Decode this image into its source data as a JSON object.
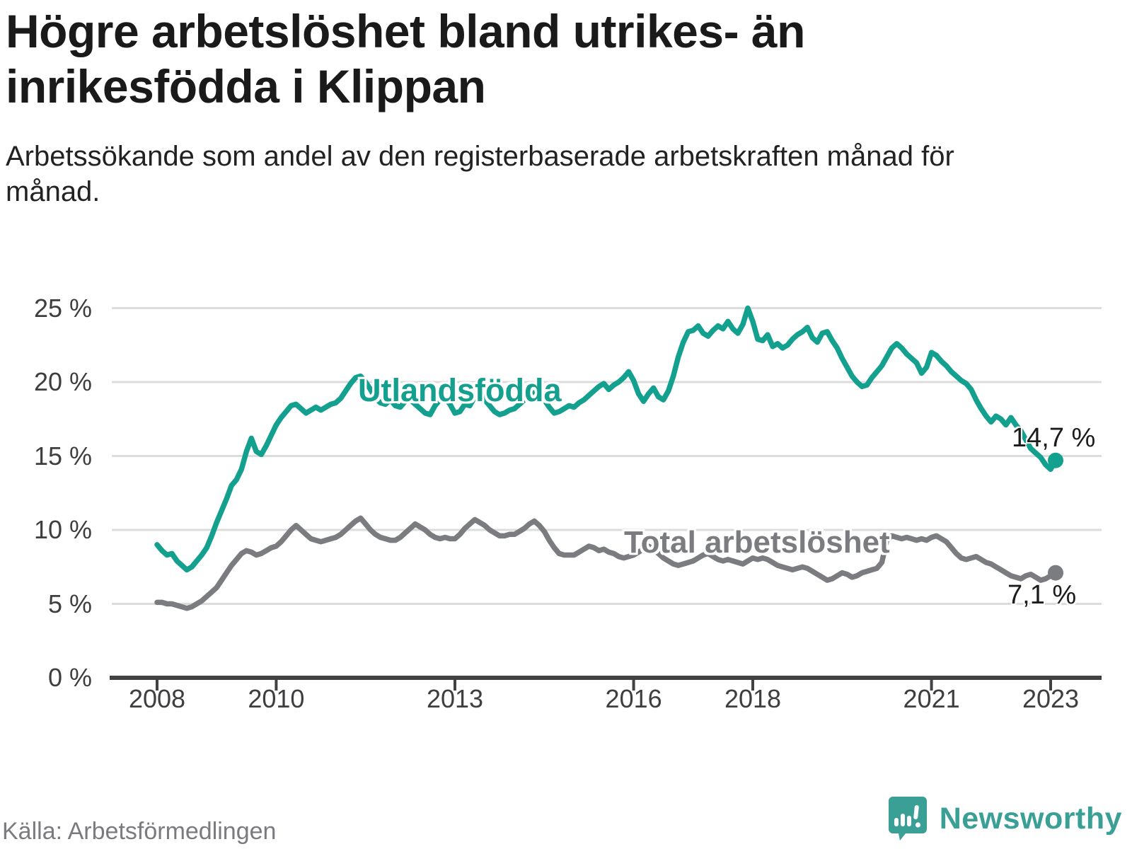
{
  "header": {
    "title": "Högre arbetslöshet bland utrikes- än inrikesfödda i Klippan",
    "subtitle": "Arbetssökande som andel av den registerbaserade arbetskraften månad för månad."
  },
  "source": {
    "label": "Källa: Arbetsförmedlingen"
  },
  "branding": {
    "name": "Newsworthy",
    "color": "#3aa096",
    "logo": "speech-bubble-bar-chart-icon"
  },
  "chart_data": {
    "type": "line",
    "title": "Högre arbetslöshet bland utrikes- än inrikesfödda i Klippan",
    "subtitle": "Arbetssökande som andel av den registerbaserade arbetskraften månad för månad.",
    "x_unit": "month",
    "x_start": "2008-01",
    "x_end": "2023-02",
    "ylim": [
      0,
      25
    ],
    "grid": "horizontal",
    "legend": "inline-labels",
    "colors": {
      "grid": "#dcdcdc",
      "axis": "#414042",
      "tick_text": "#3d3e40"
    },
    "y_ticks": [
      {
        "value": 0,
        "label": "0 %"
      },
      {
        "value": 5,
        "label": "5 %"
      },
      {
        "value": 10,
        "label": "10 %"
      },
      {
        "value": 15,
        "label": "15 %"
      },
      {
        "value": 20,
        "label": "20 %"
      },
      {
        "value": 25,
        "label": "25 %"
      }
    ],
    "x_ticks": [
      {
        "year": 2008,
        "label": "2008"
      },
      {
        "year": 2010,
        "label": "2010"
      },
      {
        "year": 2013,
        "label": "2013"
      },
      {
        "year": 2016,
        "label": "2016"
      },
      {
        "year": 2018,
        "label": "2018"
      },
      {
        "year": 2021,
        "label": "2021"
      },
      {
        "year": 2023,
        "label": "2023"
      }
    ],
    "series": [
      {
        "name": "Utlandsfödda",
        "color": "#13a08e",
        "end_label": "14,7 %",
        "end_value": 14.7,
        "values": [
          9.0,
          8.6,
          8.3,
          8.4,
          7.9,
          7.6,
          7.3,
          7.5,
          7.9,
          8.3,
          8.8,
          9.6,
          10.5,
          11.3,
          12.1,
          13.0,
          13.4,
          14.1,
          15.3,
          16.2,
          15.3,
          15.1,
          15.7,
          16.4,
          17.1,
          17.6,
          18.0,
          18.4,
          18.5,
          18.2,
          17.9,
          18.1,
          18.3,
          18.1,
          18.3,
          18.5,
          18.6,
          18.9,
          19.4,
          19.9,
          20.3,
          20.4,
          20.0,
          19.5,
          18.9,
          18.6,
          18.5,
          18.8,
          18.4,
          18.3,
          18.7,
          18.8,
          18.5,
          18.2,
          17.9,
          17.8,
          18.4,
          18.8,
          18.9,
          18.5,
          17.9,
          18.0,
          18.5,
          18.4,
          19.0,
          19.3,
          18.8,
          18.4,
          18.0,
          17.8,
          17.9,
          18.1,
          18.2,
          18.5,
          18.8,
          19.1,
          19.4,
          19.6,
          18.8,
          18.3,
          17.9,
          18.0,
          18.2,
          18.4,
          18.3,
          18.6,
          18.8,
          19.1,
          19.4,
          19.7,
          19.9,
          19.5,
          19.8,
          20.0,
          20.3,
          20.7,
          20.1,
          19.2,
          18.7,
          19.2,
          19.6,
          19.0,
          18.8,
          19.4,
          20.4,
          21.7,
          22.7,
          23.4,
          23.5,
          23.8,
          23.3,
          23.1,
          23.5,
          23.8,
          23.6,
          24.1,
          23.6,
          23.3,
          23.9,
          25.0,
          24.1,
          22.9,
          22.8,
          23.2,
          22.4,
          22.6,
          22.3,
          22.5,
          22.9,
          23.2,
          23.4,
          23.7,
          23.0,
          22.7,
          23.3,
          23.4,
          22.8,
          22.3,
          21.6,
          21.0,
          20.4,
          20.0,
          19.7,
          19.8,
          20.3,
          20.7,
          21.1,
          21.7,
          22.3,
          22.6,
          22.3,
          21.9,
          21.6,
          21.3,
          20.6,
          21.0,
          22.0,
          21.8,
          21.4,
          21.1,
          20.7,
          20.4,
          20.1,
          19.9,
          19.5,
          18.8,
          18.2,
          17.7,
          17.3,
          17.7,
          17.5,
          17.1,
          17.6,
          17.1,
          16.7,
          16.1,
          15.5,
          15.2,
          14.9,
          14.4,
          14.1,
          14.7
        ]
      },
      {
        "name": "Total arbetslöshet",
        "color": "#7b7c80",
        "end_label": "7,1 %",
        "end_value": 7.1,
        "values": [
          5.1,
          5.1,
          5.0,
          5.0,
          4.9,
          4.8,
          4.7,
          4.8,
          5.0,
          5.2,
          5.5,
          5.8,
          6.1,
          6.6,
          7.1,
          7.6,
          8.0,
          8.4,
          8.6,
          8.5,
          8.3,
          8.4,
          8.6,
          8.8,
          8.9,
          9.2,
          9.6,
          10.0,
          10.3,
          10.0,
          9.7,
          9.4,
          9.3,
          9.2,
          9.3,
          9.4,
          9.5,
          9.7,
          10.0,
          10.3,
          10.6,
          10.8,
          10.4,
          10.0,
          9.7,
          9.5,
          9.4,
          9.3,
          9.3,
          9.5,
          9.8,
          10.1,
          10.4,
          10.2,
          10.0,
          9.7,
          9.5,
          9.4,
          9.5,
          9.4,
          9.4,
          9.7,
          10.1,
          10.4,
          10.7,
          10.5,
          10.3,
          10.0,
          9.8,
          9.6,
          9.6,
          9.7,
          9.7,
          9.9,
          10.1,
          10.4,
          10.6,
          10.3,
          9.9,
          9.3,
          8.8,
          8.4,
          8.3,
          8.3,
          8.3,
          8.5,
          8.7,
          8.9,
          8.8,
          8.6,
          8.7,
          8.5,
          8.4,
          8.2,
          8.1,
          8.2,
          8.3,
          8.5,
          8.7,
          8.9,
          8.7,
          8.4,
          8.1,
          7.9,
          7.7,
          7.6,
          7.7,
          7.8,
          7.9,
          8.1,
          8.3,
          8.4,
          8.2,
          8.0,
          7.9,
          8.0,
          7.9,
          7.8,
          7.7,
          7.9,
          8.1,
          8.0,
          8.1,
          8.0,
          7.8,
          7.6,
          7.5,
          7.4,
          7.3,
          7.4,
          7.5,
          7.4,
          7.2,
          7.0,
          6.8,
          6.6,
          6.7,
          6.9,
          7.1,
          7.0,
          6.8,
          6.9,
          7.1,
          7.2,
          7.3,
          7.4,
          7.8,
          9.3,
          9.6,
          9.5,
          9.4,
          9.5,
          9.4,
          9.3,
          9.4,
          9.3,
          9.5,
          9.6,
          9.4,
          9.2,
          8.8,
          8.4,
          8.1,
          8.0,
          8.1,
          8.2,
          8.0,
          7.8,
          7.7,
          7.5,
          7.3,
          7.1,
          6.9,
          6.8,
          6.7,
          6.9,
          7.0,
          6.8,
          6.6,
          6.7,
          6.9,
          7.1
        ]
      }
    ]
  }
}
